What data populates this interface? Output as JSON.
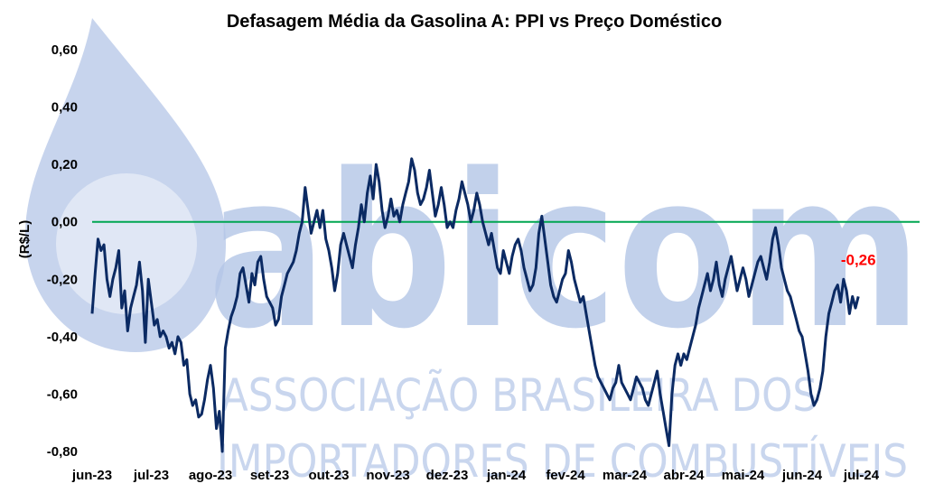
{
  "chart_data": {
    "type": "line",
    "title": "Defasagem Média da Gasolina A: PPI vs Preço Doméstico",
    "ylabel": "(R$/L)",
    "xlabel": "",
    "ylim": [
      -0.8,
      0.6
    ],
    "y_ticks": [
      "0,60",
      "0,40",
      "0,20",
      "0,00",
      "-0,20",
      "-0,40",
      "-0,60",
      "-0,80"
    ],
    "categories": [
      "jun-23",
      "jul-23",
      "ago-23",
      "set-23",
      "out-23",
      "nov-23",
      "dez-23",
      "jan-24",
      "fev-24",
      "mar-24",
      "abr-24",
      "mai-24",
      "jun-24",
      "jul-24"
    ],
    "reference_line": {
      "y": 0.0,
      "color": "#00a651"
    },
    "series": [
      {
        "color": "#0b2a63",
        "points": [
          [
            0.0,
            -0.32
          ],
          [
            0.05,
            -0.18
          ],
          [
            0.1,
            -0.06
          ],
          [
            0.15,
            -0.1
          ],
          [
            0.2,
            -0.08
          ],
          [
            0.25,
            -0.2
          ],
          [
            0.3,
            -0.26
          ],
          [
            0.35,
            -0.2
          ],
          [
            0.4,
            -0.16
          ],
          [
            0.45,
            -0.1
          ],
          [
            0.5,
            -0.3
          ],
          [
            0.55,
            -0.24
          ],
          [
            0.6,
            -0.38
          ],
          [
            0.65,
            -0.3
          ],
          [
            0.7,
            -0.26
          ],
          [
            0.75,
            -0.22
          ],
          [
            0.8,
            -0.14
          ],
          [
            0.85,
            -0.24
          ],
          [
            0.9,
            -0.42
          ],
          [
            0.95,
            -0.2
          ],
          [
            1.0,
            -0.28
          ],
          [
            1.05,
            -0.36
          ],
          [
            1.1,
            -0.34
          ],
          [
            1.15,
            -0.4
          ],
          [
            1.2,
            -0.38
          ],
          [
            1.25,
            -0.4
          ],
          [
            1.3,
            -0.44
          ],
          [
            1.35,
            -0.42
          ],
          [
            1.4,
            -0.46
          ],
          [
            1.45,
            -0.4
          ],
          [
            1.5,
            -0.42
          ],
          [
            1.55,
            -0.5
          ],
          [
            1.6,
            -0.48
          ],
          [
            1.65,
            -0.6
          ],
          [
            1.7,
            -0.64
          ],
          [
            1.75,
            -0.62
          ],
          [
            1.8,
            -0.68
          ],
          [
            1.85,
            -0.67
          ],
          [
            1.9,
            -0.62
          ],
          [
            1.95,
            -0.55
          ],
          [
            2.0,
            -0.5
          ],
          [
            2.05,
            -0.58
          ],
          [
            2.1,
            -0.72
          ],
          [
            2.15,
            -0.66
          ],
          [
            2.2,
            -0.8
          ],
          [
            2.25,
            -0.44
          ],
          [
            2.3,
            -0.38
          ],
          [
            2.35,
            -0.33
          ],
          [
            2.4,
            -0.3
          ],
          [
            2.45,
            -0.26
          ],
          [
            2.5,
            -0.18
          ],
          [
            2.55,
            -0.16
          ],
          [
            2.6,
            -0.22
          ],
          [
            2.65,
            -0.28
          ],
          [
            2.7,
            -0.18
          ],
          [
            2.75,
            -0.22
          ],
          [
            2.8,
            -0.14
          ],
          [
            2.85,
            -0.12
          ],
          [
            2.9,
            -0.2
          ],
          [
            2.95,
            -0.26
          ],
          [
            3.0,
            -0.28
          ],
          [
            3.05,
            -0.3
          ],
          [
            3.1,
            -0.36
          ],
          [
            3.15,
            -0.34
          ],
          [
            3.2,
            -0.26
          ],
          [
            3.25,
            -0.22
          ],
          [
            3.3,
            -0.18
          ],
          [
            3.35,
            -0.16
          ],
          [
            3.4,
            -0.14
          ],
          [
            3.45,
            -0.1
          ],
          [
            3.5,
            -0.04
          ],
          [
            3.55,
            0.0
          ],
          [
            3.6,
            0.12
          ],
          [
            3.65,
            0.04
          ],
          [
            3.7,
            -0.04
          ],
          [
            3.75,
            0.0
          ],
          [
            3.8,
            0.04
          ],
          [
            3.85,
            -0.02
          ],
          [
            3.9,
            0.04
          ],
          [
            3.95,
            -0.06
          ],
          [
            4.0,
            -0.1
          ],
          [
            4.05,
            -0.16
          ],
          [
            4.1,
            -0.24
          ],
          [
            4.15,
            -0.18
          ],
          [
            4.2,
            -0.08
          ],
          [
            4.25,
            -0.04
          ],
          [
            4.3,
            -0.08
          ],
          [
            4.35,
            -0.12
          ],
          [
            4.4,
            -0.16
          ],
          [
            4.45,
            -0.08
          ],
          [
            4.5,
            -0.02
          ],
          [
            4.55,
            0.06
          ],
          [
            4.6,
            0.0
          ],
          [
            4.65,
            0.1
          ],
          [
            4.7,
            0.16
          ],
          [
            4.75,
            0.08
          ],
          [
            4.8,
            0.2
          ],
          [
            4.85,
            0.14
          ],
          [
            4.9,
            0.04
          ],
          [
            4.95,
            -0.02
          ],
          [
            5.0,
            0.02
          ],
          [
            5.05,
            0.08
          ],
          [
            5.1,
            0.02
          ],
          [
            5.15,
            0.04
          ],
          [
            5.2,
            0.0
          ],
          [
            5.25,
            0.06
          ],
          [
            5.3,
            0.1
          ],
          [
            5.35,
            0.14
          ],
          [
            5.4,
            0.22
          ],
          [
            5.45,
            0.18
          ],
          [
            5.5,
            0.1
          ],
          [
            5.55,
            0.06
          ],
          [
            5.6,
            0.08
          ],
          [
            5.65,
            0.12
          ],
          [
            5.7,
            0.18
          ],
          [
            5.75,
            0.1
          ],
          [
            5.8,
            0.02
          ],
          [
            5.85,
            0.06
          ],
          [
            5.9,
            0.12
          ],
          [
            5.95,
            0.06
          ],
          [
            6.0,
            -0.02
          ],
          [
            6.05,
            0.0
          ],
          [
            6.1,
            -0.02
          ],
          [
            6.15,
            0.04
          ],
          [
            6.2,
            0.08
          ],
          [
            6.25,
            0.14
          ],
          [
            6.3,
            0.1
          ],
          [
            6.35,
            0.06
          ],
          [
            6.4,
            0.0
          ],
          [
            6.45,
            0.04
          ],
          [
            6.5,
            0.1
          ],
          [
            6.55,
            0.06
          ],
          [
            6.6,
            0.0
          ],
          [
            6.65,
            -0.04
          ],
          [
            6.7,
            -0.08
          ],
          [
            6.75,
            -0.04
          ],
          [
            6.8,
            -0.1
          ],
          [
            6.85,
            -0.16
          ],
          [
            6.9,
            -0.18
          ],
          [
            6.95,
            -0.1
          ],
          [
            7.0,
            -0.14
          ],
          [
            7.05,
            -0.18
          ],
          [
            7.1,
            -0.12
          ],
          [
            7.15,
            -0.08
          ],
          [
            7.2,
            -0.06
          ],
          [
            7.25,
            -0.1
          ],
          [
            7.3,
            -0.16
          ],
          [
            7.35,
            -0.2
          ],
          [
            7.4,
            -0.24
          ],
          [
            7.45,
            -0.22
          ],
          [
            7.5,
            -0.16
          ],
          [
            7.55,
            -0.04
          ],
          [
            7.6,
            0.02
          ],
          [
            7.65,
            -0.06
          ],
          [
            7.7,
            -0.14
          ],
          [
            7.75,
            -0.22
          ],
          [
            7.8,
            -0.26
          ],
          [
            7.85,
            -0.28
          ],
          [
            7.9,
            -0.24
          ],
          [
            7.95,
            -0.2
          ],
          [
            8.0,
            -0.18
          ],
          [
            8.05,
            -0.1
          ],
          [
            8.1,
            -0.14
          ],
          [
            8.15,
            -0.2
          ],
          [
            8.2,
            -0.24
          ],
          [
            8.25,
            -0.28
          ],
          [
            8.3,
            -0.26
          ],
          [
            8.35,
            -0.32
          ],
          [
            8.4,
            -0.38
          ],
          [
            8.45,
            -0.44
          ],
          [
            8.5,
            -0.5
          ],
          [
            8.55,
            -0.54
          ],
          [
            8.6,
            -0.56
          ],
          [
            8.65,
            -0.58
          ],
          [
            8.7,
            -0.6
          ],
          [
            8.75,
            -0.62
          ],
          [
            8.8,
            -0.58
          ],
          [
            8.85,
            -0.56
          ],
          [
            8.9,
            -0.5
          ],
          [
            8.95,
            -0.56
          ],
          [
            9.0,
            -0.58
          ],
          [
            9.05,
            -0.6
          ],
          [
            9.1,
            -0.62
          ],
          [
            9.15,
            -0.58
          ],
          [
            9.2,
            -0.54
          ],
          [
            9.25,
            -0.56
          ],
          [
            9.3,
            -0.58
          ],
          [
            9.35,
            -0.62
          ],
          [
            9.4,
            -0.64
          ],
          [
            9.45,
            -0.6
          ],
          [
            9.5,
            -0.56
          ],
          [
            9.55,
            -0.52
          ],
          [
            9.6,
            -0.6
          ],
          [
            9.65,
            -0.66
          ],
          [
            9.7,
            -0.72
          ],
          [
            9.75,
            -0.78
          ],
          [
            9.8,
            -0.6
          ],
          [
            9.85,
            -0.5
          ],
          [
            9.9,
            -0.46
          ],
          [
            9.95,
            -0.5
          ],
          [
            10.0,
            -0.46
          ],
          [
            10.05,
            -0.48
          ],
          [
            10.1,
            -0.44
          ],
          [
            10.15,
            -0.4
          ],
          [
            10.2,
            -0.36
          ],
          [
            10.25,
            -0.3
          ],
          [
            10.3,
            -0.26
          ],
          [
            10.35,
            -0.22
          ],
          [
            10.4,
            -0.18
          ],
          [
            10.45,
            -0.24
          ],
          [
            10.5,
            -0.2
          ],
          [
            10.55,
            -0.14
          ],
          [
            10.6,
            -0.22
          ],
          [
            10.65,
            -0.26
          ],
          [
            10.7,
            -0.2
          ],
          [
            10.75,
            -0.16
          ],
          [
            10.8,
            -0.12
          ],
          [
            10.85,
            -0.18
          ],
          [
            10.9,
            -0.24
          ],
          [
            10.95,
            -0.2
          ],
          [
            11.0,
            -0.16
          ],
          [
            11.05,
            -0.2
          ],
          [
            11.1,
            -0.26
          ],
          [
            11.15,
            -0.22
          ],
          [
            11.2,
            -0.18
          ],
          [
            11.25,
            -0.14
          ],
          [
            11.3,
            -0.12
          ],
          [
            11.35,
            -0.16
          ],
          [
            11.4,
            -0.2
          ],
          [
            11.45,
            -0.14
          ],
          [
            11.5,
            -0.06
          ],
          [
            11.55,
            -0.02
          ],
          [
            11.6,
            -0.08
          ],
          [
            11.65,
            -0.16
          ],
          [
            11.7,
            -0.2
          ],
          [
            11.75,
            -0.24
          ],
          [
            11.8,
            -0.26
          ],
          [
            11.85,
            -0.3
          ],
          [
            11.9,
            -0.34
          ],
          [
            11.95,
            -0.38
          ],
          [
            12.0,
            -0.4
          ],
          [
            12.05,
            -0.46
          ],
          [
            12.1,
            -0.52
          ],
          [
            12.15,
            -0.6
          ],
          [
            12.2,
            -0.64
          ],
          [
            12.25,
            -0.62
          ],
          [
            12.3,
            -0.58
          ],
          [
            12.35,
            -0.52
          ],
          [
            12.4,
            -0.4
          ],
          [
            12.45,
            -0.32
          ],
          [
            12.5,
            -0.28
          ],
          [
            12.55,
            -0.24
          ],
          [
            12.6,
            -0.22
          ],
          [
            12.65,
            -0.28
          ],
          [
            12.7,
            -0.2
          ],
          [
            12.75,
            -0.24
          ],
          [
            12.8,
            -0.32
          ],
          [
            12.85,
            -0.26
          ],
          [
            12.9,
            -0.3
          ],
          [
            12.95,
            -0.26
          ]
        ]
      }
    ],
    "last_value_label": {
      "text": "-0,26",
      "color": "#ff0000"
    }
  },
  "watermark": {
    "logo_text": "abicom",
    "line1": "ASSOCIAÇÃO BRASILEIRA DOS",
    "line2": "IMPORTADORES DE COMBUSTÍVEIS"
  }
}
